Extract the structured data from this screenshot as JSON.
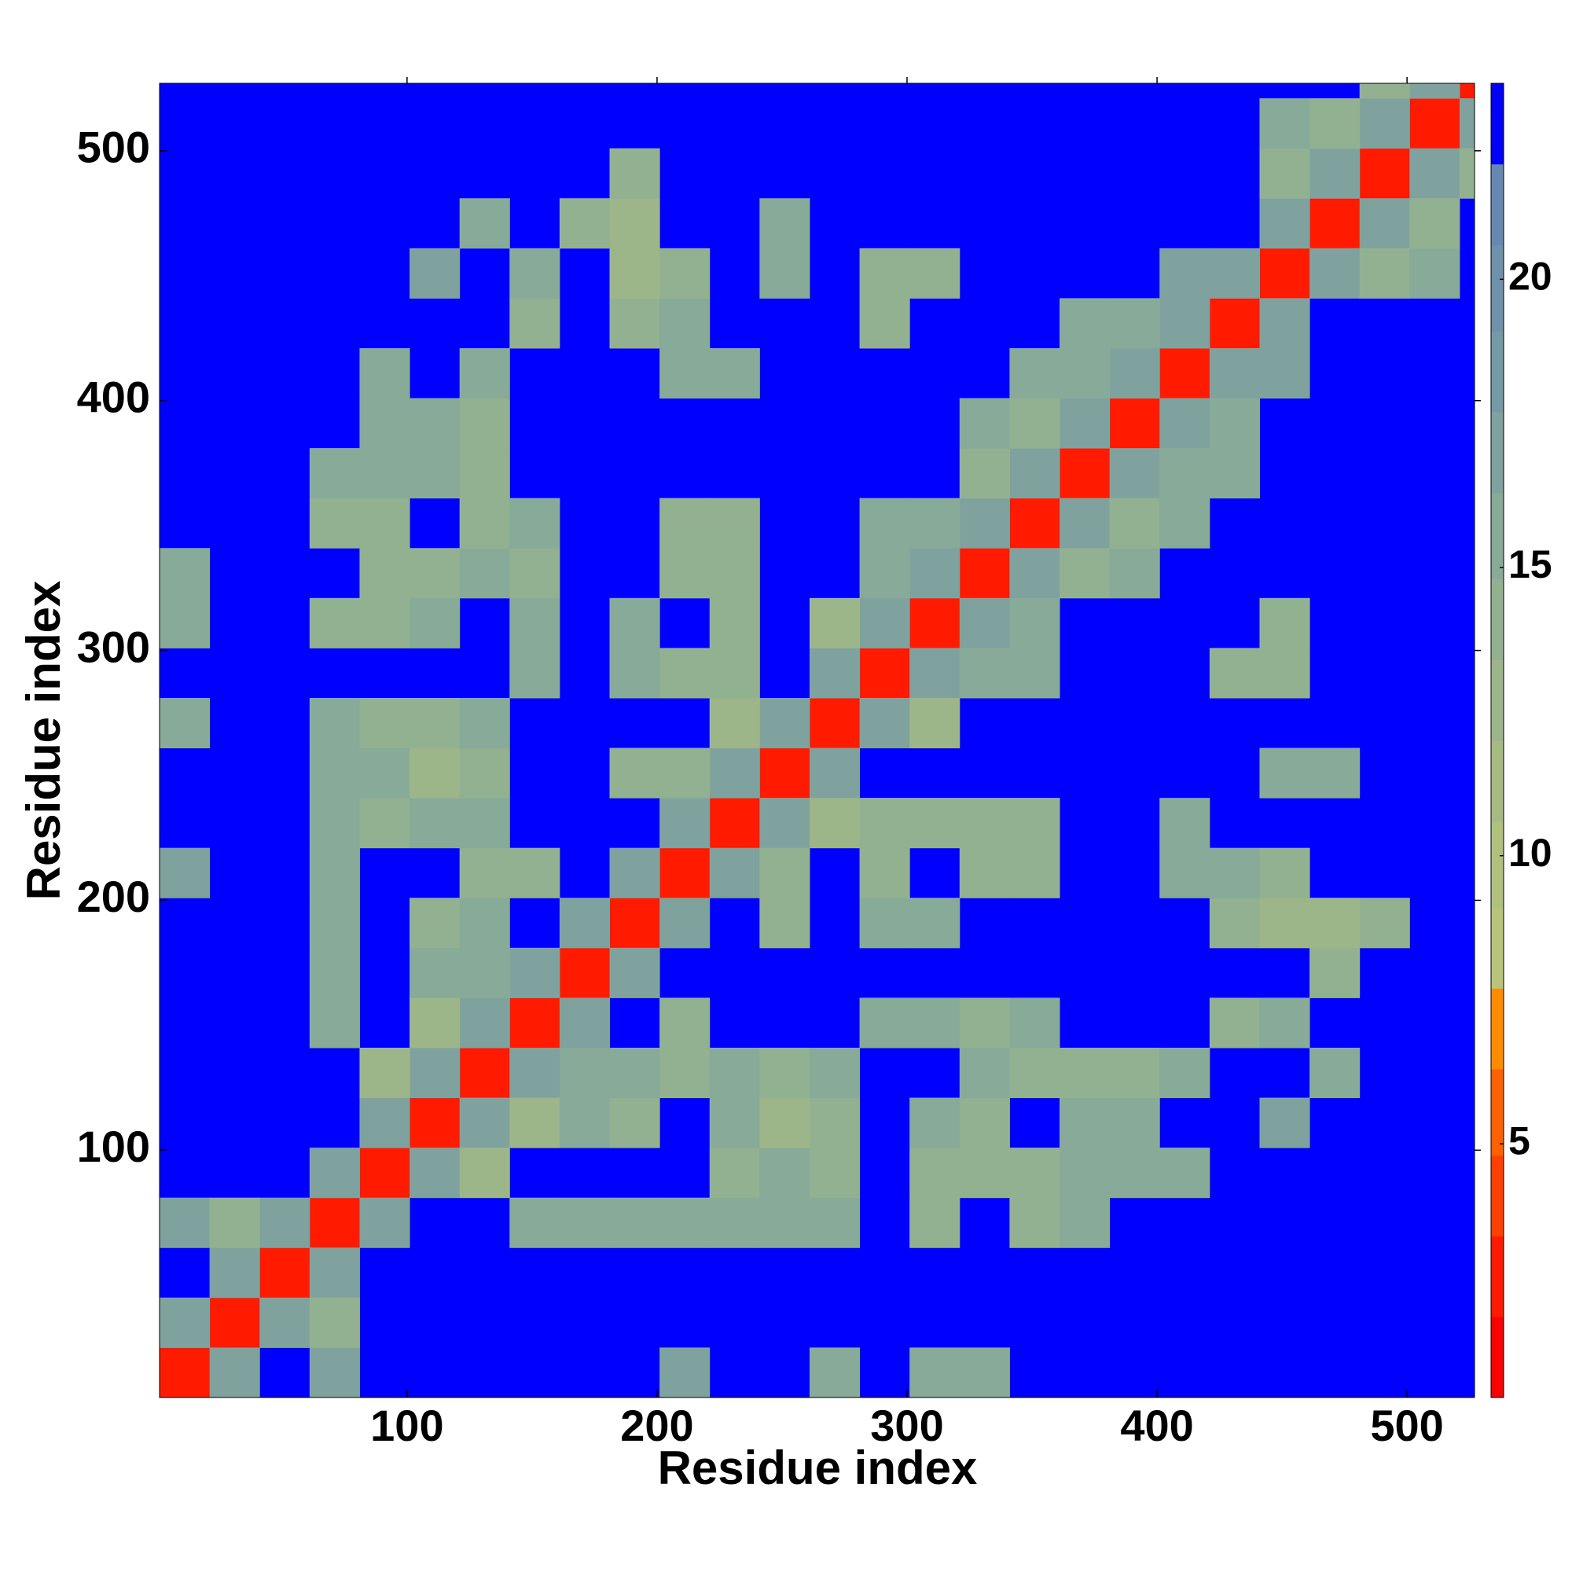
{
  "chart_data": {
    "type": "heatmap",
    "xlabel": "Residue index",
    "ylabel": "Residue index",
    "xlim": [
      1,
      527
    ],
    "ylim": [
      1,
      527
    ],
    "xticks": [
      100,
      200,
      300,
      400,
      500
    ],
    "yticks": [
      100,
      200,
      300,
      400,
      500
    ],
    "bins": [
      1,
      21,
      41,
      61,
      81,
      101,
      121,
      141,
      161,
      181,
      201,
      221,
      241,
      261,
      281,
      301,
      321,
      341,
      361,
      381,
      401,
      421,
      441,
      461,
      481,
      501,
      521,
      527
    ],
    "fill_value": 23,
    "cells": [
      [
        1,
        1,
        3
      ],
      [
        21,
        21,
        3
      ],
      [
        41,
        41,
        3
      ],
      [
        61,
        61,
        3
      ],
      [
        81,
        81,
        3
      ],
      [
        101,
        101,
        3
      ],
      [
        121,
        121,
        3
      ],
      [
        141,
        141,
        3
      ],
      [
        161,
        161,
        3
      ],
      [
        181,
        181,
        3
      ],
      [
        201,
        201,
        3
      ],
      [
        221,
        221,
        3
      ],
      [
        241,
        241,
        3
      ],
      [
        261,
        261,
        3
      ],
      [
        281,
        281,
        3
      ],
      [
        301,
        301,
        3
      ],
      [
        321,
        321,
        3
      ],
      [
        341,
        341,
        3
      ],
      [
        361,
        361,
        3
      ],
      [
        381,
        381,
        3
      ],
      [
        401,
        401,
        3
      ],
      [
        421,
        421,
        3
      ],
      [
        441,
        441,
        3
      ],
      [
        461,
        461,
        3
      ],
      [
        481,
        481,
        3
      ],
      [
        501,
        501,
        3
      ],
      [
        521,
        521,
        3
      ],
      [
        1,
        21,
        17
      ],
      [
        21,
        1,
        17
      ],
      [
        21,
        41,
        17
      ],
      [
        41,
        21,
        17
      ],
      [
        41,
        61,
        17
      ],
      [
        61,
        41,
        17
      ],
      [
        61,
        81,
        17
      ],
      [
        81,
        61,
        17
      ],
      [
        81,
        101,
        17
      ],
      [
        101,
        81,
        17
      ],
      [
        101,
        121,
        17
      ],
      [
        121,
        101,
        17
      ],
      [
        121,
        141,
        17
      ],
      [
        141,
        121,
        17
      ],
      [
        141,
        161,
        17
      ],
      [
        161,
        141,
        17
      ],
      [
        161,
        181,
        17
      ],
      [
        181,
        161,
        17
      ],
      [
        181,
        201,
        17
      ],
      [
        201,
        181,
        17
      ],
      [
        201,
        221,
        17
      ],
      [
        221,
        201,
        17
      ],
      [
        221,
        241,
        17
      ],
      [
        241,
        221,
        17
      ],
      [
        241,
        261,
        17
      ],
      [
        261,
        241,
        17
      ],
      [
        261,
        281,
        17
      ],
      [
        281,
        261,
        17
      ],
      [
        281,
        301,
        17
      ],
      [
        301,
        281,
        17
      ],
      [
        301,
        321,
        17
      ],
      [
        321,
        301,
        17
      ],
      [
        321,
        341,
        17
      ],
      [
        341,
        321,
        17
      ],
      [
        341,
        361,
        17
      ],
      [
        361,
        341,
        17
      ],
      [
        361,
        381,
        17
      ],
      [
        381,
        361,
        17
      ],
      [
        381,
        401,
        17
      ],
      [
        401,
        381,
        17
      ],
      [
        401,
        421,
        17
      ],
      [
        421,
        401,
        17
      ],
      [
        421,
        441,
        17
      ],
      [
        441,
        421,
        17
      ],
      [
        441,
        461,
        17
      ],
      [
        461,
        441,
        17
      ],
      [
        461,
        481,
        17
      ],
      [
        481,
        461,
        17
      ],
      [
        481,
        501,
        17
      ],
      [
        501,
        481,
        17
      ],
      [
        501,
        521,
        17
      ],
      [
        521,
        501,
        17
      ],
      [
        1,
        61,
        17
      ],
      [
        61,
        1,
        17
      ],
      [
        1,
        201,
        17
      ],
      [
        201,
        1,
        17
      ],
      [
        1,
        261,
        16
      ],
      [
        261,
        1,
        16
      ],
      [
        1,
        301,
        16
      ],
      [
        301,
        1,
        16
      ],
      [
        1,
        321,
        16
      ],
      [
        321,
        1,
        16
      ],
      [
        21,
        61,
        14
      ],
      [
        61,
        21,
        14
      ],
      [
        61,
        141,
        16
      ],
      [
        141,
        61,
        16
      ],
      [
        61,
        161,
        16
      ],
      [
        161,
        61,
        16
      ],
      [
        61,
        181,
        16
      ],
      [
        181,
        61,
        16
      ],
      [
        61,
        201,
        16
      ],
      [
        201,
        61,
        16
      ],
      [
        61,
        221,
        16
      ],
      [
        221,
        61,
        16
      ],
      [
        61,
        241,
        16
      ],
      [
        241,
        61,
        16
      ],
      [
        61,
        261,
        16
      ],
      [
        261,
        61,
        16
      ],
      [
        61,
        301,
        14
      ],
      [
        301,
        61,
        14
      ],
      [
        61,
        341,
        14
      ],
      [
        341,
        61,
        14
      ],
      [
        61,
        361,
        15
      ],
      [
        361,
        61,
        15
      ],
      [
        81,
        121,
        13
      ],
      [
        121,
        81,
        13
      ],
      [
        81,
        221,
        14
      ],
      [
        221,
        81,
        14
      ],
      [
        81,
        241,
        15
      ],
      [
        241,
        81,
        15
      ],
      [
        81,
        261,
        14
      ],
      [
        261,
        81,
        14
      ],
      [
        81,
        301,
        14
      ],
      [
        301,
        81,
        14
      ],
      [
        81,
        321,
        14
      ],
      [
        321,
        81,
        14
      ],
      [
        81,
        341,
        14
      ],
      [
        341,
        81,
        14
      ],
      [
        81,
        361,
        15
      ],
      [
        361,
        81,
        15
      ],
      [
        81,
        381,
        16
      ],
      [
        381,
        81,
        16
      ],
      [
        81,
        401,
        16
      ],
      [
        401,
        81,
        16
      ],
      [
        101,
        141,
        13
      ],
      [
        141,
        101,
        13
      ],
      [
        101,
        161,
        15
      ],
      [
        161,
        101,
        15
      ],
      [
        101,
        181,
        14
      ],
      [
        181,
        101,
        14
      ],
      [
        101,
        221,
        15
      ],
      [
        221,
        101,
        15
      ],
      [
        101,
        241,
        13
      ],
      [
        241,
        101,
        13
      ],
      [
        101,
        261,
        14
      ],
      [
        261,
        101,
        14
      ],
      [
        101,
        301,
        15
      ],
      [
        301,
        101,
        15
      ],
      [
        101,
        321,
        14
      ],
      [
        321,
        101,
        14
      ],
      [
        101,
        361,
        15
      ],
      [
        361,
        101,
        15
      ],
      [
        101,
        381,
        16
      ],
      [
        381,
        101,
        16
      ],
      [
        101,
        441,
        17
      ],
      [
        441,
        101,
        17
      ],
      [
        121,
        161,
        15
      ],
      [
        161,
        121,
        15
      ],
      [
        121,
        181,
        15
      ],
      [
        181,
        121,
        15
      ],
      [
        121,
        201,
        14
      ],
      [
        201,
        121,
        14
      ],
      [
        121,
        221,
        15
      ],
      [
        221,
        121,
        15
      ],
      [
        121,
        241,
        14
      ],
      [
        241,
        121,
        14
      ],
      [
        121,
        261,
        15
      ],
      [
        261,
        121,
        15
      ],
      [
        121,
        321,
        15
      ],
      [
        321,
        121,
        15
      ],
      [
        121,
        341,
        14
      ],
      [
        341,
        121,
        14
      ],
      [
        121,
        361,
        14
      ],
      [
        361,
        121,
        14
      ],
      [
        121,
        381,
        14
      ],
      [
        381,
        121,
        14
      ],
      [
        121,
        401,
        16
      ],
      [
        401,
        121,
        16
      ],
      [
        121,
        461,
        16
      ],
      [
        461,
        121,
        16
      ],
      [
        141,
        201,
        14
      ],
      [
        201,
        141,
        14
      ],
      [
        141,
        281,
        15
      ],
      [
        281,
        141,
        15
      ],
      [
        141,
        301,
        15
      ],
      [
        301,
        141,
        15
      ],
      [
        141,
        321,
        14
      ],
      [
        321,
        141,
        14
      ],
      [
        141,
        341,
        15
      ],
      [
        341,
        141,
        15
      ],
      [
        141,
        421,
        14
      ],
      [
        421,
        141,
        14
      ],
      [
        141,
        441,
        16
      ],
      [
        441,
        141,
        16
      ],
      [
        161,
        461,
        14
      ],
      [
        461,
        161,
        14
      ],
      [
        181,
        241,
        14
      ],
      [
        241,
        181,
        14
      ],
      [
        181,
        281,
        16
      ],
      [
        281,
        181,
        16
      ],
      [
        181,
        301,
        16
      ],
      [
        301,
        181,
        16
      ],
      [
        181,
        421,
        14
      ],
      [
        421,
        181,
        14
      ],
      [
        181,
        441,
        13
      ],
      [
        441,
        181,
        13
      ],
      [
        181,
        461,
        13
      ],
      [
        461,
        181,
        13
      ],
      [
        181,
        481,
        14
      ],
      [
        481,
        181,
        14
      ],
      [
        201,
        241,
        14
      ],
      [
        241,
        201,
        14
      ],
      [
        201,
        281,
        14
      ],
      [
        281,
        201,
        14
      ],
      [
        201,
        321,
        14
      ],
      [
        321,
        201,
        14
      ],
      [
        201,
        341,
        14
      ],
      [
        341,
        201,
        14
      ],
      [
        201,
        401,
        15
      ],
      [
        401,
        201,
        15
      ],
      [
        201,
        421,
        15
      ],
      [
        421,
        201,
        15
      ],
      [
        201,
        441,
        14
      ],
      [
        441,
        201,
        14
      ],
      [
        221,
        261,
        13
      ],
      [
        261,
        221,
        13
      ],
      [
        221,
        281,
        14
      ],
      [
        281,
        221,
        14
      ],
      [
        221,
        301,
        14
      ],
      [
        301,
        221,
        14
      ],
      [
        221,
        321,
        14
      ],
      [
        321,
        221,
        14
      ],
      [
        221,
        341,
        14
      ],
      [
        341,
        221,
        14
      ],
      [
        221,
        401,
        15
      ],
      [
        401,
        221,
        15
      ],
      [
        241,
        441,
        16
      ],
      [
        441,
        241,
        16
      ],
      [
        241,
        461,
        16
      ],
      [
        461,
        241,
        16
      ],
      [
        261,
        301,
        13
      ],
      [
        301,
        261,
        13
      ],
      [
        281,
        321,
        15
      ],
      [
        321,
        281,
        15
      ],
      [
        281,
        341,
        15
      ],
      [
        341,
        281,
        15
      ],
      [
        281,
        421,
        14
      ],
      [
        421,
        281,
        14
      ],
      [
        281,
        441,
        14
      ],
      [
        441,
        281,
        14
      ],
      [
        301,
        341,
        15
      ],
      [
        341,
        301,
        15
      ],
      [
        301,
        441,
        14
      ],
      [
        441,
        301,
        14
      ],
      [
        321,
        361,
        14
      ],
      [
        361,
        321,
        14
      ],
      [
        321,
        381,
        16
      ],
      [
        381,
        321,
        16
      ],
      [
        341,
        381,
        14
      ],
      [
        381,
        341,
        14
      ],
      [
        341,
        401,
        15
      ],
      [
        401,
        341,
        15
      ],
      [
        361,
        401,
        15
      ],
      [
        401,
        361,
        15
      ],
      [
        361,
        421,
        16
      ],
      [
        421,
        361,
        16
      ],
      [
        381,
        421,
        16
      ],
      [
        421,
        381,
        16
      ],
      [
        401,
        441,
        17
      ],
      [
        441,
        401,
        17
      ],
      [
        441,
        481,
        14
      ],
      [
        481,
        441,
        14
      ],
      [
        441,
        501,
        15
      ],
      [
        501,
        441,
        15
      ],
      [
        461,
        501,
        14
      ],
      [
        501,
        461,
        14
      ],
      [
        481,
        521,
        14
      ],
      [
        521,
        481,
        14
      ]
    ],
    "colorbar": {
      "levels": [
        0.6,
        2,
        3.4,
        4.8,
        6.3,
        7.7,
        9.1,
        10.6,
        12,
        13.4,
        14.8,
        16.3,
        17.7,
        19.1,
        20.6,
        22,
        23.4
      ],
      "colors": [
        "#ff0000",
        "#ff1a00",
        "#ff4000",
        "#ff6000",
        "#ff8c00",
        "#b8c47a",
        "#b0c07e",
        "#a6bb84",
        "#9cb68a",
        "#92b190",
        "#88aa98",
        "#7fa29f",
        "#7699a6",
        "#6e91ac",
        "#6688b2",
        "#0000ff"
      ],
      "ticks": [
        5,
        10,
        15,
        20
      ]
    }
  }
}
